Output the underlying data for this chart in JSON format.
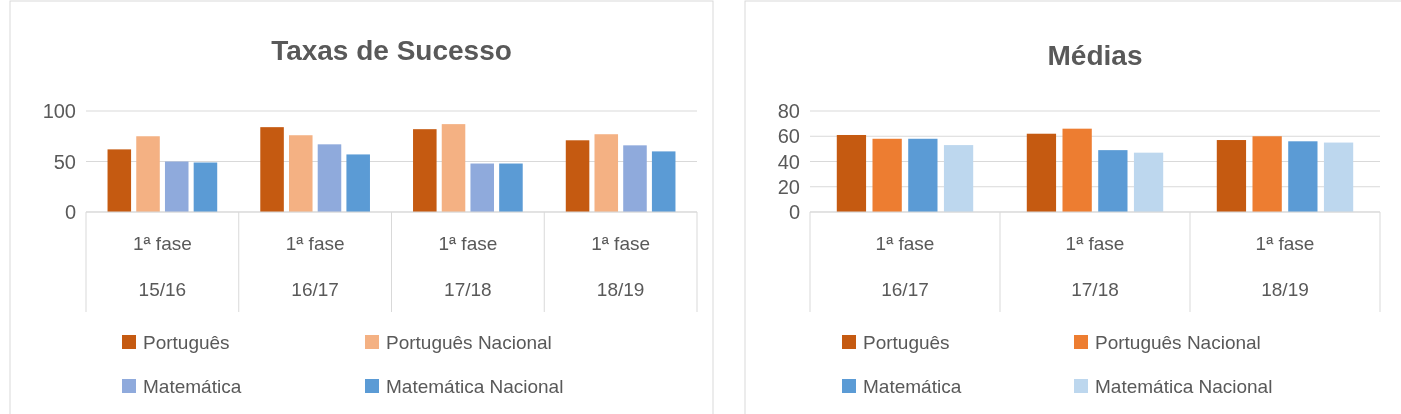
{
  "chart_data": [
    {
      "type": "bar",
      "title": "Taxas de Sucesso",
      "categories": [
        "1ª fase\n15/16",
        "1ª fase\n16/17",
        "1ª fase\n17/18",
        "1ª fase\n18/19"
      ],
      "series": [
        {
          "name": "Português",
          "color": "#c55a11",
          "values": [
            62,
            84,
            82,
            71
          ]
        },
        {
          "name": "Português Nacional",
          "color": "#f4b183",
          "values": [
            75,
            76,
            87,
            77
          ]
        },
        {
          "name": "Matemática",
          "color": "#8faadc",
          "values": [
            50,
            67,
            48,
            66
          ]
        },
        {
          "name": "Matemática Nacional",
          "color": "#5b9bd5",
          "values": [
            49,
            57,
            48,
            60
          ]
        }
      ],
      "ylim": [
        0,
        100
      ],
      "yticks": [
        0,
        50,
        100
      ],
      "grid": "y",
      "legend": "bottom"
    },
    {
      "type": "bar",
      "title": "Médias",
      "categories": [
        "1ª fase\n16/17",
        "1ª fase\n17/18",
        "1ª fase\n18/19"
      ],
      "series": [
        {
          "name": "Português",
          "color": "#c55a11",
          "values": [
            61,
            62,
            57
          ]
        },
        {
          "name": "Português Nacional",
          "color": "#ed7d31",
          "values": [
            58,
            66,
            60
          ]
        },
        {
          "name": "Matemática",
          "color": "#5b9bd5",
          "values": [
            58,
            49,
            56
          ]
        },
        {
          "name": "Matemática Nacional",
          "color": "#bdd7ee",
          "values": [
            53,
            47,
            55
          ]
        }
      ],
      "ylim": [
        0,
        80
      ],
      "yticks": [
        0,
        20,
        40,
        60,
        80
      ],
      "grid": "y",
      "legend": "bottom"
    }
  ]
}
